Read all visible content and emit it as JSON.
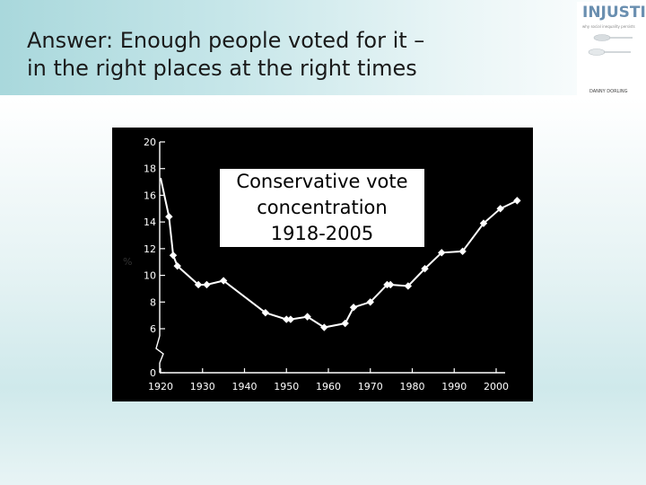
{
  "slide": {
    "title_line1": "Answer: Enough people voted for it –",
    "title_line2": "in the right places at the right times"
  },
  "logo": {
    "word": "INJUSTICE",
    "tagline": "why social inequality persists",
    "author": "DANNY DORLING",
    "brand_color": "#6a8fb0"
  },
  "chart_data": {
    "type": "line",
    "title": "Conservative vote concentration 1918-2005",
    "title_lines": [
      "Conservative vote",
      "concentration",
      "1918-2005"
    ],
    "ylabel": "%",
    "xlabel": "",
    "xlim": [
      1920,
      2005
    ],
    "ylim": [
      0,
      20
    ],
    "axis_break": true,
    "x_ticks": [
      1920,
      1930,
      1940,
      1950,
      1960,
      1970,
      1980,
      1990,
      2000
    ],
    "y_ticks": [
      0,
      6,
      8,
      10,
      12,
      14,
      16,
      18,
      20
    ],
    "grid": false,
    "background": "#000000",
    "line_color": "#ffffff",
    "series": [
      {
        "x": [
          1918,
          1922,
          1923,
          1924,
          1929,
          1931,
          1935,
          1945,
          1950,
          1951,
          1955,
          1959,
          1964,
          1966,
          1970,
          1974,
          1974.8,
          1979,
          1983,
          1987,
          1992,
          1997,
          2001,
          2005
        ],
        "values": [
          17.3,
          14.4,
          11.5,
          10.7,
          9.3,
          9.3,
          9.6,
          7.2,
          6.7,
          6.7,
          6.9,
          6.1,
          6.4,
          7.6,
          8.0,
          9.3,
          9.3,
          9.2,
          10.5,
          11.7,
          11.8,
          13.9,
          15.0,
          15.6
        ]
      }
    ]
  }
}
